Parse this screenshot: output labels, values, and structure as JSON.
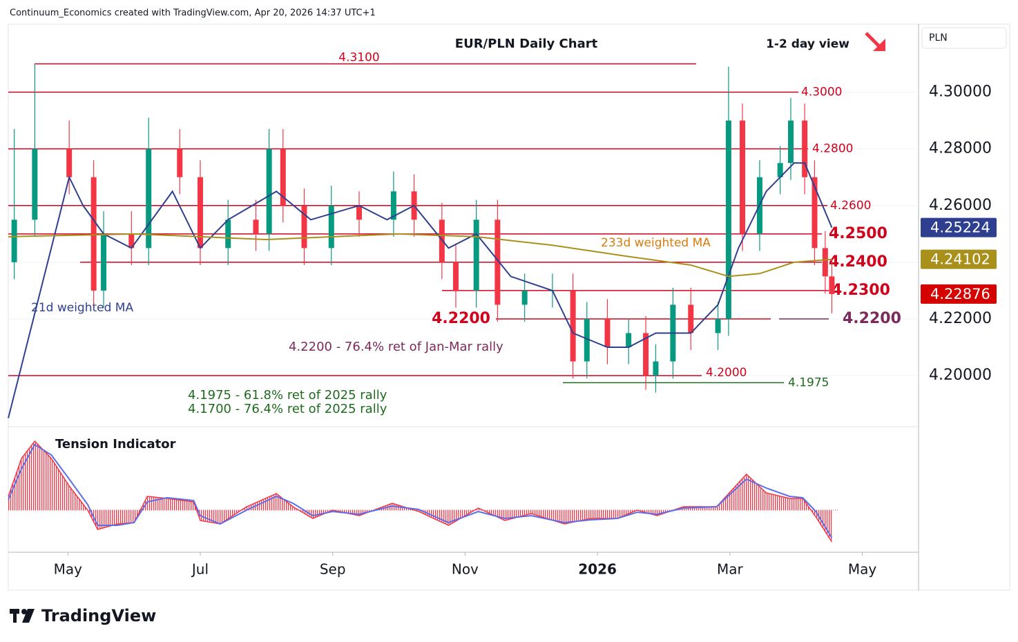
{
  "chart_data": {
    "type": "candlestick",
    "header": "Continuum_Economics created with TradingView.com, Apr 20, 2026 14:37 UTC+1",
    "title": "EUR/PLN Daily Chart",
    "view": "1-2 day view",
    "currency": "PLN",
    "ylim": [
      4.182,
      4.324
    ],
    "yticks": [
      {
        "value": 4.2,
        "label": "4.20000"
      },
      {
        "value": 4.22,
        "label": "4.22000"
      },
      {
        "value": 4.24,
        "label": "4.24000"
      },
      {
        "value": 4.26,
        "label": "4.26000"
      },
      {
        "value": 4.28,
        "label": "4.28000"
      },
      {
        "value": 4.3,
        "label": "4.30000"
      }
    ],
    "xlim": [
      0.1,
      13.85
    ],
    "xticks": [
      {
        "value": 1,
        "label": "May"
      },
      {
        "value": 3,
        "label": "Jul"
      },
      {
        "value": 5,
        "label": "Sep"
      },
      {
        "value": 7,
        "label": "Nov"
      },
      {
        "value": 9,
        "label": "2026"
      },
      {
        "value": 11,
        "label": "Mar"
      },
      {
        "value": 13,
        "label": "May"
      }
    ],
    "grid": true,
    "up_color": "#089981",
    "down_color": "#f23645",
    "candles": {
      "x": [
        0.19,
        0.5,
        1.02,
        1.39,
        1.54,
        1.96,
        2.22,
        2.69,
        3.0,
        3.42,
        3.84,
        4.04,
        4.25,
        4.57,
        4.98,
        5.4,
        5.92,
        6.23,
        6.65,
        6.86,
        7.17,
        7.49,
        7.9,
        8.32,
        8.63,
        8.84,
        9.15,
        9.47,
        9.73,
        9.88,
        10.14,
        10.41,
        10.82,
        10.98,
        11.19,
        11.45,
        11.76,
        11.92,
        12.13,
        12.28,
        12.44,
        12.54
      ],
      "open": [
        4.24,
        4.255,
        4.28,
        4.27,
        4.23,
        4.25,
        4.245,
        4.28,
        4.27,
        4.245,
        4.255,
        4.25,
        4.28,
        4.26,
        4.245,
        4.26,
        4.255,
        4.265,
        4.255,
        4.24,
        4.23,
        4.255,
        4.225,
        4.23,
        4.23,
        4.205,
        4.22,
        4.21,
        4.215,
        4.2,
        4.205,
        4.225,
        4.215,
        4.22,
        4.29,
        4.25,
        4.27,
        4.275,
        4.29,
        4.27,
        4.245,
        4.235
      ],
      "high": [
        4.287,
        4.31,
        4.29,
        4.276,
        4.258,
        4.258,
        4.291,
        4.287,
        4.276,
        4.262,
        4.262,
        4.287,
        4.287,
        4.266,
        4.267,
        4.265,
        4.272,
        4.271,
        4.261,
        4.246,
        4.262,
        4.262,
        4.236,
        4.236,
        4.236,
        4.226,
        4.227,
        4.22,
        4.221,
        4.211,
        4.231,
        4.231,
        4.226,
        4.309,
        4.296,
        4.276,
        4.281,
        4.298,
        4.296,
        4.276,
        4.251,
        4.241
      ],
      "low": [
        4.234,
        4.249,
        4.264,
        4.225,
        4.224,
        4.239,
        4.239,
        4.264,
        4.239,
        4.239,
        4.244,
        4.244,
        4.254,
        4.239,
        4.239,
        4.249,
        4.249,
        4.249,
        4.234,
        4.224,
        4.224,
        4.219,
        4.219,
        4.224,
        4.199,
        4.199,
        4.204,
        4.204,
        4.195,
        4.194,
        4.199,
        4.209,
        4.209,
        4.214,
        4.244,
        4.244,
        4.264,
        4.269,
        4.264,
        4.239,
        4.229,
        4.222
      ],
      "close": [
        4.255,
        4.28,
        4.27,
        4.23,
        4.25,
        4.245,
        4.28,
        4.27,
        4.245,
        4.255,
        4.25,
        4.28,
        4.26,
        4.245,
        4.26,
        4.255,
        4.265,
        4.255,
        4.24,
        4.23,
        4.255,
        4.225,
        4.23,
        4.23,
        4.205,
        4.22,
        4.21,
        4.215,
        4.2,
        4.205,
        4.225,
        4.215,
        4.22,
        4.29,
        4.25,
        4.27,
        4.275,
        4.29,
        4.27,
        4.245,
        4.235,
        4.22876
      ]
    },
    "series": [
      {
        "name": "21d weighted MA",
        "color": "#2e3f8f",
        "x": [
          0.1,
          1.02,
          1.23,
          1.54,
          1.96,
          2.58,
          3.0,
          3.42,
          4.15,
          4.67,
          5.4,
          5.82,
          6.23,
          6.75,
          7.17,
          7.69,
          8.32,
          8.63,
          9.15,
          9.47,
          9.88,
          10.41,
          10.82,
          11.13,
          11.55,
          11.97,
          12.13,
          12.54
        ],
        "values": [
          4.185,
          4.27,
          4.26,
          4.25,
          4.245,
          4.265,
          4.245,
          4.255,
          4.265,
          4.255,
          4.26,
          4.255,
          4.26,
          4.245,
          4.25,
          4.235,
          4.23,
          4.215,
          4.21,
          4.21,
          4.215,
          4.215,
          4.225,
          4.245,
          4.265,
          4.275,
          4.275,
          4.25224
        ]
      },
      {
        "name": "233d weighted MA",
        "color": "#a8901a",
        "x": [
          0.1,
          2.0,
          4.0,
          6.0,
          7.17,
          8.32,
          9.47,
          10.41,
          10.98,
          11.45,
          11.97,
          12.54
        ],
        "values": [
          4.249,
          4.25,
          4.248,
          4.25,
          4.249,
          4.246,
          4.242,
          4.239,
          4.235,
          4.236,
          4.24,
          4.24102
        ]
      }
    ],
    "levels": [
      {
        "value": 4.31,
        "label": "4.3100"
      },
      {
        "value": 4.3,
        "label": "4.3000"
      },
      {
        "value": 4.28,
        "label": "4.2800"
      },
      {
        "value": 4.26,
        "label": "4.2600"
      },
      {
        "value": 4.25,
        "label": "4.2500"
      },
      {
        "value": 4.24,
        "label": "4.2400"
      },
      {
        "value": 4.23,
        "label": "4.2300"
      },
      {
        "value": 4.22,
        "label": "4.2200"
      },
      {
        "value": 4.2,
        "label": "4.2000"
      },
      {
        "value": 4.1975,
        "label": "4.1975"
      }
    ],
    "annotations": [
      "4.2200 - 76.4% ret of Jan-Mar rally",
      "4.1975 - 61.8% ret of 2025 rally",
      "4.1700 - 76.4% ret of 2025 rally"
    ],
    "tension": {
      "title": "Tension Indicator",
      "ylim": [
        -0.61,
        1.19
      ],
      "x": [
        0.1,
        0.3,
        0.5,
        0.75,
        1.02,
        1.3,
        1.45,
        1.75,
        2.0,
        2.2,
        2.5,
        2.9,
        3.0,
        3.3,
        3.7,
        4.15,
        4.4,
        4.7,
        5.0,
        5.4,
        5.9,
        6.3,
        6.75,
        7.2,
        7.6,
        8.0,
        8.5,
        8.9,
        9.3,
        9.6,
        9.9,
        10.3,
        10.8,
        11.25,
        11.55,
        11.9,
        12.1,
        12.3,
        12.54
      ],
      "histogram": [
        0.2,
        0.75,
        1.0,
        0.75,
        0.35,
        0.0,
        -0.28,
        -0.2,
        -0.18,
        0.2,
        0.17,
        0.12,
        -0.15,
        -0.2,
        0.05,
        0.24,
        0.05,
        -0.12,
        0.0,
        -0.08,
        0.1,
        -0.02,
        -0.22,
        0.03,
        -0.15,
        -0.05,
        -0.2,
        -0.12,
        -0.12,
        0.0,
        -0.08,
        0.05,
        0.05,
        0.52,
        0.25,
        0.17,
        0.17,
        -0.1,
        -0.46
      ],
      "histogram_color": "#f23645",
      "signal": [
        0.15,
        0.6,
        0.95,
        0.8,
        0.45,
        0.08,
        -0.22,
        -0.22,
        -0.18,
        0.12,
        0.18,
        0.14,
        -0.08,
        -0.2,
        0.0,
        0.2,
        0.1,
        -0.08,
        -0.02,
        -0.06,
        0.06,
        0.01,
        -0.18,
        -0.02,
        -0.12,
        -0.08,
        -0.18,
        -0.14,
        -0.12,
        -0.03,
        -0.06,
        0.03,
        0.05,
        0.45,
        0.32,
        0.2,
        0.18,
        -0.02,
        -0.4
      ],
      "signal_color": "#5b6ee8"
    },
    "brand": "TradingView"
  }
}
